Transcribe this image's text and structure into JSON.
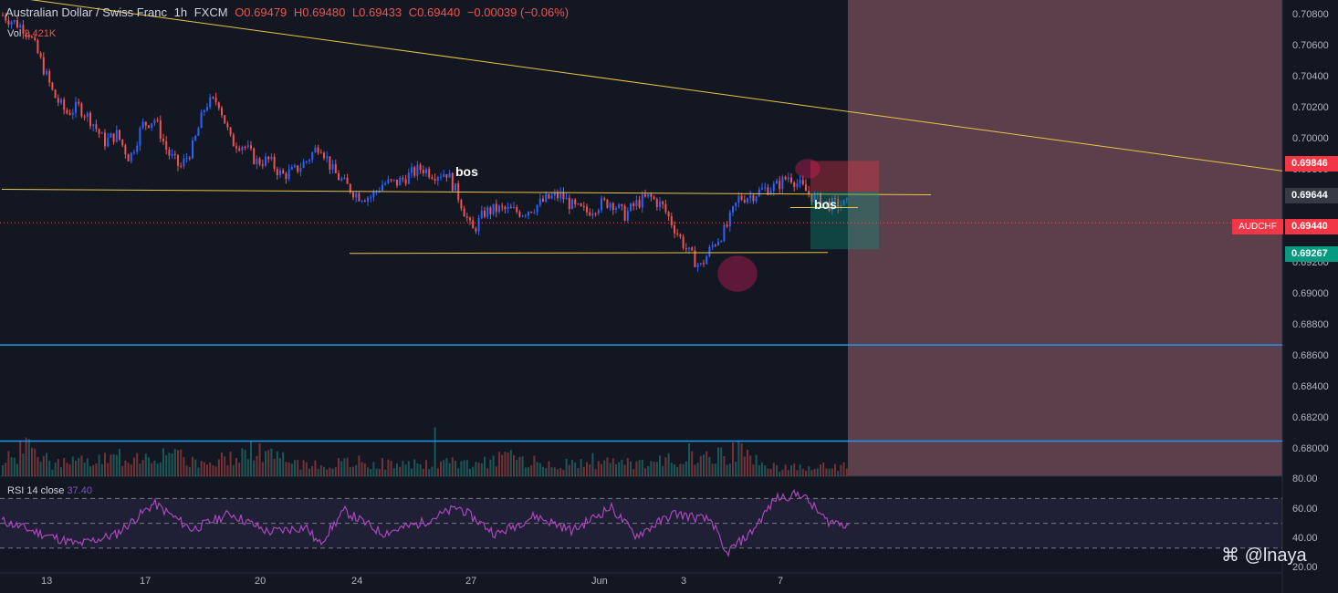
{
  "header": {
    "symbol_name": "Australian Dollar / Swiss Franc",
    "interval": "1h",
    "broker": "FXCM",
    "open": "O0.69479",
    "high": "H0.69480",
    "low": "L0.69433",
    "close": "C0.69440",
    "change": "−0.00039 (−0.06%)"
  },
  "volume": {
    "label": "Vol",
    "value": "2.421K"
  },
  "rsi": {
    "label": "RSI 14 close",
    "value": "37.40",
    "ticks": [
      "80.00",
      "60.00",
      "40.00",
      "20.00"
    ]
  },
  "price_scale": {
    "ticks": [
      "0.70800",
      "0.70600",
      "0.70400",
      "0.70200",
      "0.70000",
      "0.69800",
      "0.69600",
      "0.69400",
      "0.69200",
      "0.69000",
      "0.68800",
      "0.68600",
      "0.68400",
      "0.68200",
      "0.68000"
    ],
    "badge_stop": "0.69846",
    "badge_entry": "0.69644",
    "badge_last": "0.69440",
    "badge_target": "0.69267",
    "symbol_badge": "AUDCHF"
  },
  "time_axis": [
    "13",
    "17",
    "20",
    "24",
    "27",
    "Jun",
    "3",
    "7"
  ],
  "annotations": {
    "bos_1": "bos",
    "bos_2": "bos"
  },
  "watermark": "@lnaya",
  "colors": {
    "background": "#131722",
    "bull": "#2962ff",
    "bear": "#ef5350",
    "trendline": "#e8c547",
    "horizontal": "#2196f3",
    "shade": "#5b3f4a",
    "rsi": "#ab47bc"
  },
  "chart_data": {
    "type": "candlestick",
    "title": "Australian Dollar / Swiss Franc",
    "ylim": [
      0.6778,
      0.709
    ],
    "close_path": [
      [
        0,
        0.708
      ],
      [
        2,
        0.707
      ],
      [
        3,
        0.705
      ],
      [
        4,
        0.7028
      ],
      [
        5,
        0.7016
      ],
      [
        6,
        0.702
      ],
      [
        7,
        0.7011
      ],
      [
        8,
        0.6997
      ],
      [
        9,
        0.7002
      ],
      [
        10,
        0.6986
      ],
      [
        11,
        0.7008
      ],
      [
        12,
        0.7012
      ],
      [
        13,
        0.699
      ],
      [
        14,
        0.698
      ],
      [
        15,
        0.6994
      ],
      [
        16,
        0.7022
      ],
      [
        17,
        0.7024
      ],
      [
        18,
        0.6997
      ],
      [
        19,
        0.6995
      ],
      [
        20,
        0.6984
      ],
      [
        21,
        0.6985
      ],
      [
        22,
        0.6975
      ],
      [
        23,
        0.6978
      ],
      [
        24,
        0.6985
      ],
      [
        25,
        0.6996
      ],
      [
        26,
        0.6978
      ],
      [
        27,
        0.6969
      ],
      [
        28,
        0.6962
      ],
      [
        29,
        0.6961
      ],
      [
        30,
        0.697
      ],
      [
        31,
        0.697
      ],
      [
        32,
        0.6975
      ],
      [
        33,
        0.698
      ],
      [
        34,
        0.6976
      ],
      [
        35,
        0.6977
      ],
      [
        36,
        0.696
      ],
      [
        37,
        0.6938
      ],
      [
        38,
        0.6951
      ],
      [
        39,
        0.6953
      ],
      [
        40,
        0.6952
      ],
      [
        41,
        0.6951
      ],
      [
        42,
        0.6955
      ],
      [
        43,
        0.696
      ],
      [
        44,
        0.6962
      ],
      [
        45,
        0.6954
      ],
      [
        46,
        0.6951
      ],
      [
        47,
        0.6956
      ],
      [
        48,
        0.6958
      ],
      [
        49,
        0.6949
      ],
      [
        50,
        0.6957
      ],
      [
        51,
        0.6961
      ],
      [
        52,
        0.6955
      ],
      [
        53,
        0.694
      ],
      [
        54,
        0.6925
      ],
      [
        55,
        0.6915
      ],
      [
        56,
        0.693
      ],
      [
        57,
        0.694
      ],
      [
        58,
        0.696
      ],
      [
        59,
        0.6962
      ],
      [
        60,
        0.6966
      ],
      [
        61,
        0.6968
      ],
      [
        62,
        0.6975
      ],
      [
        63,
        0.6967
      ],
      [
        64,
        0.696
      ],
      [
        65,
        0.6956
      ]
    ],
    "volume_path": [
      [
        0,
        0.4
      ],
      [
        2,
        0.95
      ],
      [
        4,
        0.35
      ],
      [
        8,
        0.5
      ],
      [
        12,
        0.7
      ],
      [
        16,
        0.4
      ],
      [
        20,
        0.8
      ],
      [
        24,
        0.3
      ],
      [
        28,
        0.45
      ],
      [
        32,
        0.35
      ],
      [
        36,
        0.4
      ],
      [
        40,
        0.55
      ],
      [
        44,
        0.35
      ],
      [
        48,
        0.4
      ],
      [
        52,
        0.45
      ],
      [
        56,
        0.6
      ],
      [
        58,
        0.75
      ],
      [
        60,
        0.3
      ],
      [
        62,
        0.25
      ],
      [
        65,
        0.3
      ]
    ],
    "rsi_path": [
      [
        0,
        52
      ],
      [
        3,
        42
      ],
      [
        6,
        33
      ],
      [
        9,
        41
      ],
      [
        12,
        66
      ],
      [
        15,
        45
      ],
      [
        18,
        58
      ],
      [
        21,
        43
      ],
      [
        24,
        47
      ],
      [
        25,
        33
      ],
      [
        27,
        60
      ],
      [
        30,
        42
      ],
      [
        33,
        50
      ],
      [
        36,
        63
      ],
      [
        39,
        41
      ],
      [
        42,
        56
      ],
      [
        45,
        44
      ],
      [
        48,
        63
      ],
      [
        50,
        40
      ],
      [
        53,
        58
      ],
      [
        56,
        52
      ],
      [
        57,
        25
      ],
      [
        59,
        42
      ],
      [
        61,
        70
      ],
      [
        63,
        74
      ],
      [
        65,
        52
      ],
      [
        68,
        47
      ],
      [
        70,
        42
      ],
      [
        72,
        35
      ]
    ],
    "rsi_levels": [
      70,
      50,
      30
    ],
    "lines": {
      "top_range": 0.6966,
      "bottom_range": 0.6924,
      "blue_upper": 0.6864,
      "blue_lower": 0.6801,
      "trend_start": 0.7093,
      "trend_end": 0.6978
    },
    "position": {
      "stop": 0.69846,
      "entry": 0.69644,
      "target": 0.69267,
      "last": 0.6944
    }
  }
}
